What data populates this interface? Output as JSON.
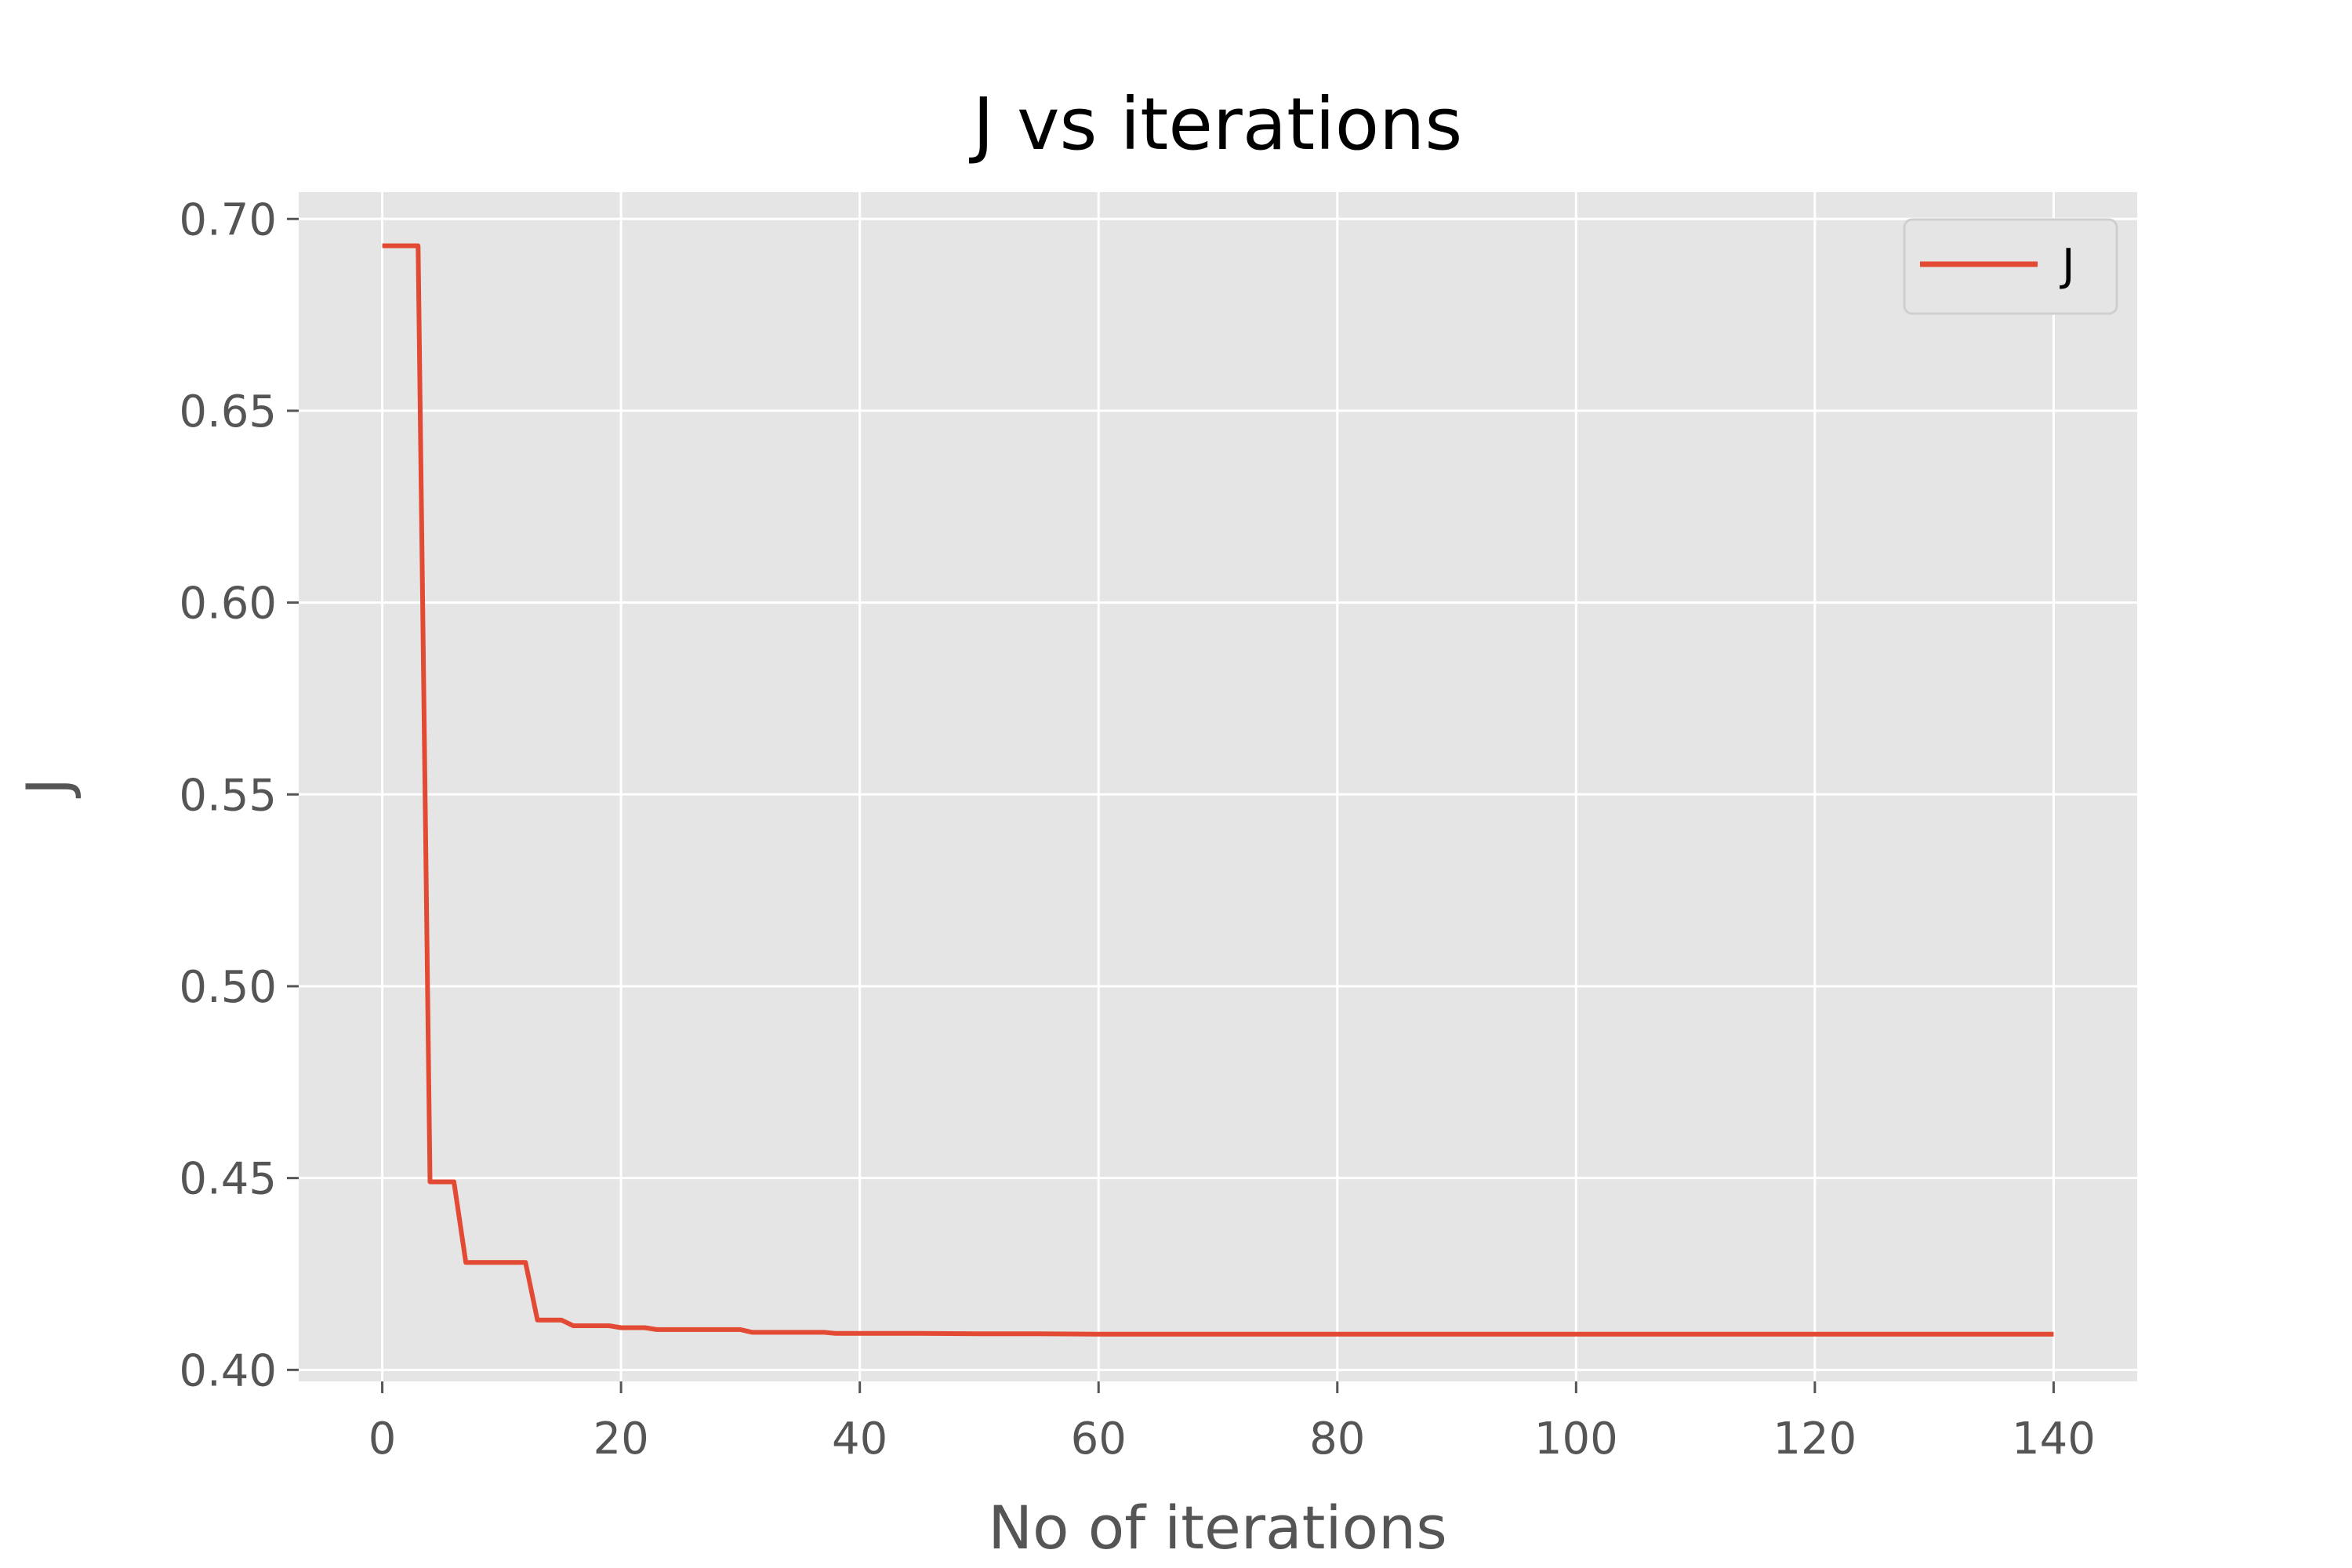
{
  "chart_data": {
    "type": "line",
    "title": "J vs iterations",
    "xlabel": "No of iterations",
    "ylabel": "J",
    "xlim": [
      -7,
      147
    ],
    "ylim": [
      0.397,
      0.707
    ],
    "xticks": [
      0,
      20,
      40,
      60,
      80,
      100,
      120,
      140
    ],
    "xtick_labels": [
      "0",
      "20",
      "40",
      "60",
      "80",
      "100",
      "120",
      "140"
    ],
    "yticks": [
      0.4,
      0.45,
      0.5,
      0.55,
      0.6,
      0.65,
      0.7
    ],
    "ytick_labels": [
      "0.40",
      "0.45",
      "0.50",
      "0.55",
      "0.60",
      "0.65",
      "0.70"
    ],
    "grid": true,
    "legend_position": "top-right",
    "background_color": "#e5e5e5",
    "grid_color": "#ffffff",
    "series": [
      {
        "name": "J",
        "color": "#e24a33",
        "x": [
          0,
          1,
          2,
          3,
          4,
          5,
          6,
          7,
          8,
          9,
          10,
          11,
          12,
          13,
          14,
          15,
          16,
          17,
          18,
          19,
          20,
          21,
          22,
          23,
          24,
          25,
          26,
          27,
          28,
          29,
          30,
          31,
          32,
          33,
          34,
          35,
          36,
          37,
          38,
          39,
          40,
          45,
          50,
          55,
          60,
          65,
          70,
          75,
          80,
          85,
          90,
          95,
          100,
          105,
          110,
          115,
          120,
          125,
          130,
          135,
          140
        ],
        "y": [
          0.693,
          0.693,
          0.693,
          0.693,
          0.449,
          0.449,
          0.449,
          0.428,
          0.428,
          0.428,
          0.428,
          0.428,
          0.428,
          0.413,
          0.413,
          0.413,
          0.4115,
          0.4115,
          0.4115,
          0.4115,
          0.411,
          0.411,
          0.411,
          0.4105,
          0.4105,
          0.4105,
          0.4105,
          0.4105,
          0.4105,
          0.4105,
          0.4105,
          0.4098,
          0.4098,
          0.4098,
          0.4098,
          0.4098,
          0.4098,
          0.4098,
          0.4095,
          0.4095,
          0.4095,
          0.4095,
          0.4094,
          0.4094,
          0.4093,
          0.4093,
          0.4093,
          0.4093,
          0.4093,
          0.4093,
          0.4093,
          0.4093,
          0.4093,
          0.4093,
          0.4093,
          0.4093,
          0.4093,
          0.4093,
          0.4093,
          0.4093,
          0.4093
        ]
      }
    ]
  }
}
